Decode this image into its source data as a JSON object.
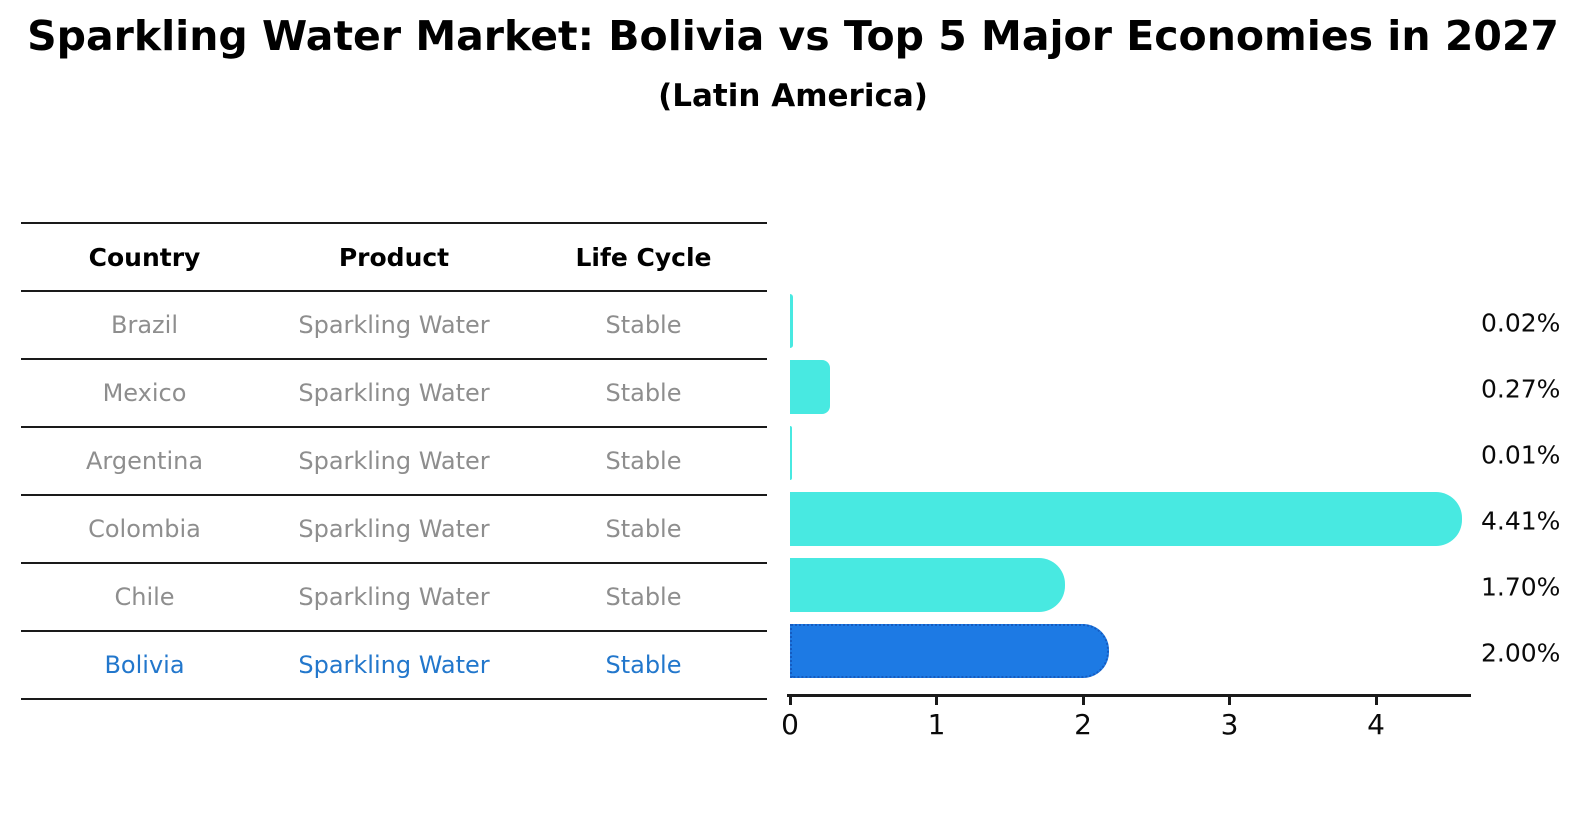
{
  "chart_data": {
    "type": "bar",
    "orientation": "horizontal",
    "title": "Sparkling Water Market: Bolivia vs Top 5 Major Economies in 2027",
    "subtitle": "(Latin America)",
    "categories": [
      "Brazil",
      "Mexico",
      "Argentina",
      "Colombia",
      "Chile",
      "Bolivia"
    ],
    "values": [
      0.02,
      0.27,
      0.01,
      4.41,
      1.7,
      2.0
    ],
    "labels": [
      "0.02%",
      "0.27%",
      "0.01%",
      "4.41%",
      "1.70%",
      "2.00%"
    ],
    "highlight_index": 5,
    "highlight_category": "Bolivia",
    "xticks": [
      0,
      1,
      2,
      3,
      4
    ],
    "xlim": [
      0,
      4.65
    ],
    "grid": false,
    "legend": "none"
  },
  "table": {
    "columns": [
      "Country",
      "Product",
      "Life Cycle"
    ],
    "rows": [
      {
        "country": "Brazil",
        "product": "Sparkling Water",
        "life_cycle": "Stable"
      },
      {
        "country": "Mexico",
        "product": "Sparkling Water",
        "life_cycle": "Stable"
      },
      {
        "country": "Argentina",
        "product": "Sparkling Water",
        "life_cycle": "Stable"
      },
      {
        "country": "Colombia",
        "product": "Sparkling Water",
        "life_cycle": "Stable"
      },
      {
        "country": "Chile",
        "product": "Sparkling Water",
        "life_cycle": "Stable"
      },
      {
        "country": "Bolivia",
        "product": "Sparkling Water",
        "life_cycle": "Stable"
      }
    ]
  },
  "colors": {
    "bar_cyan": "#48E9E1",
    "bar_blue": "#1D7AE4",
    "bar_blue_border": "#155BC0",
    "highlight_text": "#2277CC",
    "muted_text": "#8E8E8E",
    "line": "#1A1A1A"
  }
}
